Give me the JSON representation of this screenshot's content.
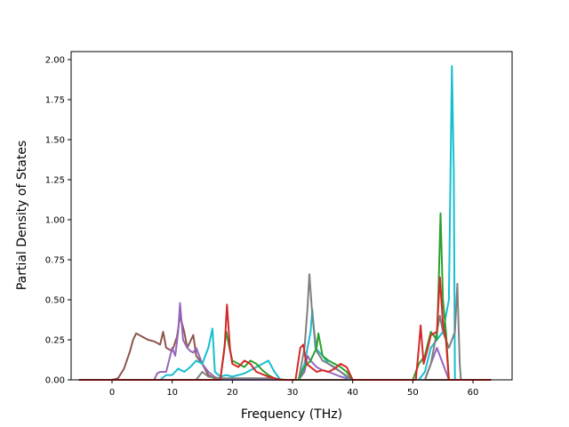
{
  "chart_data": {
    "type": "line",
    "title": "",
    "xlabel": "Frequency (THz)",
    "ylabel": "Partial Density of States",
    "xlim": [
      -6.8,
      66.5
    ],
    "ylim": [
      0,
      2.05
    ],
    "x_ticks": [
      0,
      10,
      20,
      30,
      40,
      50,
      60
    ],
    "y_ticks": [
      0.0,
      0.25,
      0.5,
      0.75,
      1.0,
      1.25,
      1.5,
      1.75,
      2.0
    ],
    "x_tick_labels": [
      "0",
      "10",
      "20",
      "30",
      "40",
      "50",
      "60"
    ],
    "y_tick_labels": [
      "0.00",
      "0.25",
      "0.50",
      "0.75",
      "1.00",
      "1.25",
      "1.50",
      "1.75",
      "2.00"
    ],
    "grid": false,
    "legend": "none",
    "series": [
      {
        "color": "#8c564b",
        "points": [
          [
            -5.5,
            0
          ],
          [
            0,
            0
          ],
          [
            1,
            0.01
          ],
          [
            2,
            0.07
          ],
          [
            3,
            0.18
          ],
          [
            3.5,
            0.25
          ],
          [
            4,
            0.29
          ],
          [
            5,
            0.27
          ],
          [
            6,
            0.25
          ],
          [
            7,
            0.24
          ],
          [
            8,
            0.22
          ],
          [
            8.5,
            0.3
          ],
          [
            9,
            0.2
          ],
          [
            10,
            0.18
          ],
          [
            10.8,
            0.27
          ],
          [
            11.3,
            0.4
          ],
          [
            12,
            0.3
          ],
          [
            12.5,
            0.2
          ],
          [
            13,
            0.24
          ],
          [
            13.5,
            0.28
          ],
          [
            14,
            0.15
          ],
          [
            15,
            0.1
          ],
          [
            16,
            0.03
          ],
          [
            17,
            0.01
          ],
          [
            18,
            0.0
          ],
          [
            30,
            0.0
          ],
          [
            50,
            0.0
          ],
          [
            52,
            0.0
          ],
          [
            54,
            0.0
          ],
          [
            57,
            0.0
          ],
          [
            63,
            0.0
          ]
        ]
      },
      {
        "color": "#9467bd",
        "points": [
          [
            -5.5,
            0
          ],
          [
            7,
            0.0
          ],
          [
            7.5,
            0.04
          ],
          [
            8,
            0.05
          ],
          [
            9,
            0.05
          ],
          [
            10,
            0.2
          ],
          [
            10.5,
            0.15
          ],
          [
            11,
            0.3
          ],
          [
            11.3,
            0.48
          ],
          [
            11.8,
            0.25
          ],
          [
            12.5,
            0.2
          ],
          [
            13,
            0.18
          ],
          [
            13.5,
            0.17
          ],
          [
            14,
            0.2
          ],
          [
            15,
            0.1
          ],
          [
            16,
            0.05
          ],
          [
            17,
            0.02
          ],
          [
            18,
            0.0
          ],
          [
            31,
            0.0
          ],
          [
            32,
            0.05
          ],
          [
            32.5,
            0.15
          ],
          [
            33,
            0.12
          ],
          [
            34,
            0.08
          ],
          [
            35,
            0.06
          ],
          [
            36,
            0.05
          ],
          [
            38,
            0.02
          ],
          [
            40,
            0.0
          ],
          [
            52,
            0.0
          ],
          [
            53,
            0.1
          ],
          [
            54,
            0.2
          ],
          [
            55,
            0.1
          ],
          [
            56,
            0.0
          ],
          [
            63,
            0.0
          ]
        ]
      },
      {
        "color": "#17becf",
        "points": [
          [
            -5.5,
            0
          ],
          [
            8,
            0.0
          ],
          [
            9,
            0.03
          ],
          [
            10,
            0.03
          ],
          [
            11,
            0.07
          ],
          [
            12,
            0.05
          ],
          [
            13,
            0.08
          ],
          [
            14,
            0.12
          ],
          [
            15,
            0.1
          ],
          [
            16,
            0.2
          ],
          [
            16.7,
            0.32
          ],
          [
            17.1,
            0.05
          ],
          [
            18,
            0.02
          ],
          [
            19,
            0.03
          ],
          [
            20,
            0.02
          ],
          [
            22,
            0.04
          ],
          [
            24,
            0.08
          ],
          [
            25,
            0.1
          ],
          [
            26,
            0.12
          ],
          [
            27,
            0.05
          ],
          [
            28,
            0.0
          ],
          [
            31,
            0.0
          ],
          [
            32,
            0.1
          ],
          [
            33,
            0.3
          ],
          [
            33.3,
            0.44
          ],
          [
            33.8,
            0.2
          ],
          [
            35,
            0.15
          ],
          [
            36,
            0.1
          ],
          [
            37,
            0.08
          ],
          [
            38,
            0.05
          ],
          [
            39,
            0.02
          ],
          [
            40,
            0.0
          ],
          [
            51,
            0.0
          ],
          [
            52,
            0.05
          ],
          [
            53,
            0.2
          ],
          [
            54,
            0.25
          ],
          [
            55,
            0.3
          ],
          [
            56,
            0.5
          ],
          [
            56.5,
            1.96
          ],
          [
            56.8,
            1.3
          ],
          [
            57,
            0.0
          ],
          [
            63,
            0.0
          ]
        ]
      },
      {
        "color": "#7f7f7f",
        "points": [
          [
            -5.5,
            0
          ],
          [
            14,
            0.0
          ],
          [
            15,
            0.05
          ],
          [
            16,
            0.02
          ],
          [
            18,
            0.01
          ],
          [
            22,
            0.01
          ],
          [
            26,
            0.01
          ],
          [
            29,
            0.0
          ],
          [
            31,
            0.0
          ],
          [
            31.5,
            0.1
          ],
          [
            32,
            0.2
          ],
          [
            32.5,
            0.45
          ],
          [
            32.8,
            0.66
          ],
          [
            33.3,
            0.4
          ],
          [
            34,
            0.18
          ],
          [
            35,
            0.12
          ],
          [
            36,
            0.1
          ],
          [
            38,
            0.05
          ],
          [
            40,
            0.0
          ],
          [
            52,
            0.0
          ],
          [
            53,
            0.1
          ],
          [
            54,
            0.3
          ],
          [
            54.5,
            0.4
          ],
          [
            55,
            0.3
          ],
          [
            56,
            0.2
          ],
          [
            57,
            0.3
          ],
          [
            57.4,
            0.6
          ],
          [
            57.8,
            0.1
          ],
          [
            58,
            0.0
          ],
          [
            63,
            0.0
          ]
        ]
      },
      {
        "color": "#2ca02c",
        "points": [
          [
            -5.5,
            0
          ],
          [
            18,
            0.0
          ],
          [
            19,
            0.3
          ],
          [
            19.5,
            0.2
          ],
          [
            20,
            0.12
          ],
          [
            21,
            0.1
          ],
          [
            22,
            0.08
          ],
          [
            23,
            0.12
          ],
          [
            24,
            0.1
          ],
          [
            25,
            0.06
          ],
          [
            26,
            0.03
          ],
          [
            27,
            0.01
          ],
          [
            28,
            0.0
          ],
          [
            31,
            0.0
          ],
          [
            32,
            0.08
          ],
          [
            33,
            0.12
          ],
          [
            34,
            0.2
          ],
          [
            34.3,
            0.29
          ],
          [
            35,
            0.15
          ],
          [
            36,
            0.12
          ],
          [
            37,
            0.1
          ],
          [
            38,
            0.08
          ],
          [
            39,
            0.05
          ],
          [
            40,
            0.0
          ],
          [
            50,
            0.0
          ],
          [
            51,
            0.1
          ],
          [
            52,
            0.15
          ],
          [
            53,
            0.3
          ],
          [
            54,
            0.25
          ],
          [
            54.3,
            0.6
          ],
          [
            54.6,
            1.04
          ],
          [
            55,
            0.5
          ],
          [
            55.5,
            0.3
          ],
          [
            56,
            0.0
          ],
          [
            63,
            0.0
          ]
        ]
      },
      {
        "color": "#d62728",
        "points": [
          [
            -5.5,
            0
          ],
          [
            18,
            0.0
          ],
          [
            18.7,
            0.2
          ],
          [
            19.1,
            0.47
          ],
          [
            19.6,
            0.2
          ],
          [
            20,
            0.1
          ],
          [
            21,
            0.08
          ],
          [
            22,
            0.12
          ],
          [
            23,
            0.1
          ],
          [
            24,
            0.05
          ],
          [
            26,
            0.02
          ],
          [
            28,
            0.0
          ],
          [
            30.5,
            0.0
          ],
          [
            31.3,
            0.2
          ],
          [
            31.8,
            0.22
          ],
          [
            32.3,
            0.1
          ],
          [
            33,
            0.08
          ],
          [
            34,
            0.05
          ],
          [
            35,
            0.06
          ],
          [
            36,
            0.05
          ],
          [
            37,
            0.07
          ],
          [
            38,
            0.1
          ],
          [
            39,
            0.08
          ],
          [
            40,
            0.0
          ],
          [
            50.5,
            0.0
          ],
          [
            51,
            0.2
          ],
          [
            51.3,
            0.34
          ],
          [
            51.8,
            0.1
          ],
          [
            52.5,
            0.2
          ],
          [
            53,
            0.28
          ],
          [
            54,
            0.3
          ],
          [
            54.5,
            0.64
          ],
          [
            55,
            0.35
          ],
          [
            55.5,
            0.25
          ],
          [
            56,
            0.0
          ],
          [
            63,
            0.0
          ]
        ]
      }
    ]
  }
}
